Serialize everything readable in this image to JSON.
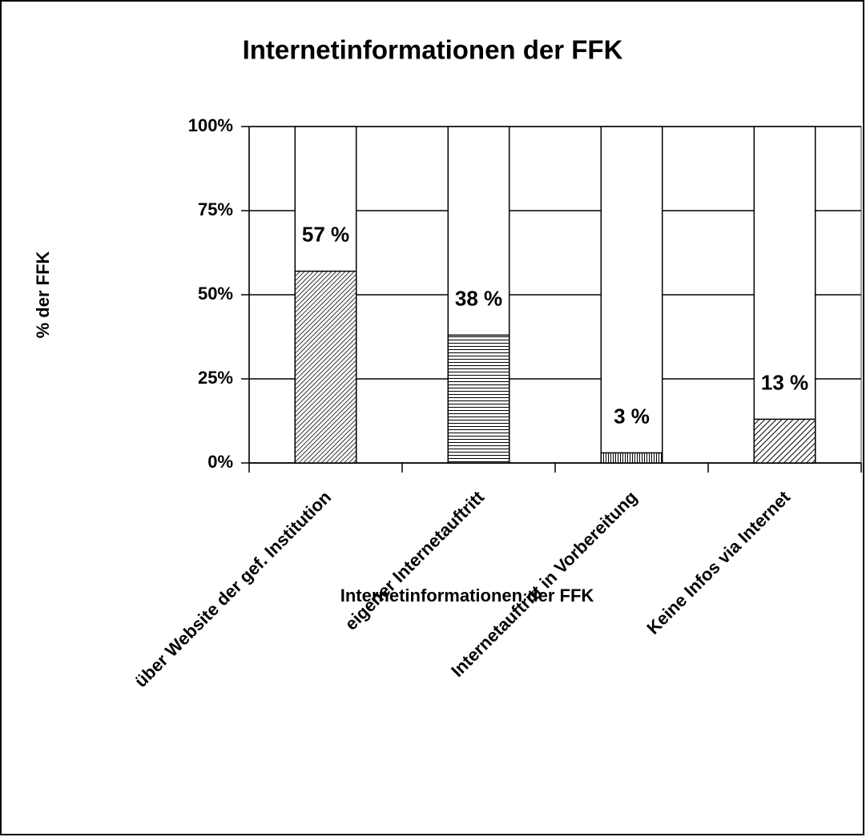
{
  "chart_data": {
    "type": "bar",
    "title": "Internetinformationen der FFK",
    "categories": [
      "über Website der gef. Institution",
      "eigener Internetauftritt",
      "Internetauftritt in Vorbereitung",
      "Keine Infos via Internet"
    ],
    "values": [
      57,
      38,
      3,
      13
    ],
    "value_labels": [
      "57 %",
      "38 %",
      "3 %",
      "13 %"
    ],
    "patterns": [
      "dense",
      "horizontal",
      "vertical",
      "diagonal"
    ],
    "ylim": [
      0,
      100
    ],
    "yticks": [
      {
        "value": 0,
        "label": "0%"
      },
      {
        "value": 25,
        "label": "25%"
      },
      {
        "value": 50,
        "label": "50%"
      },
      {
        "value": 75,
        "label": "75%"
      },
      {
        "value": 100,
        "label": "100%"
      }
    ],
    "ylabel": "% der FFK",
    "xlabel": "Internetinformationen der FFK",
    "grid": true
  }
}
